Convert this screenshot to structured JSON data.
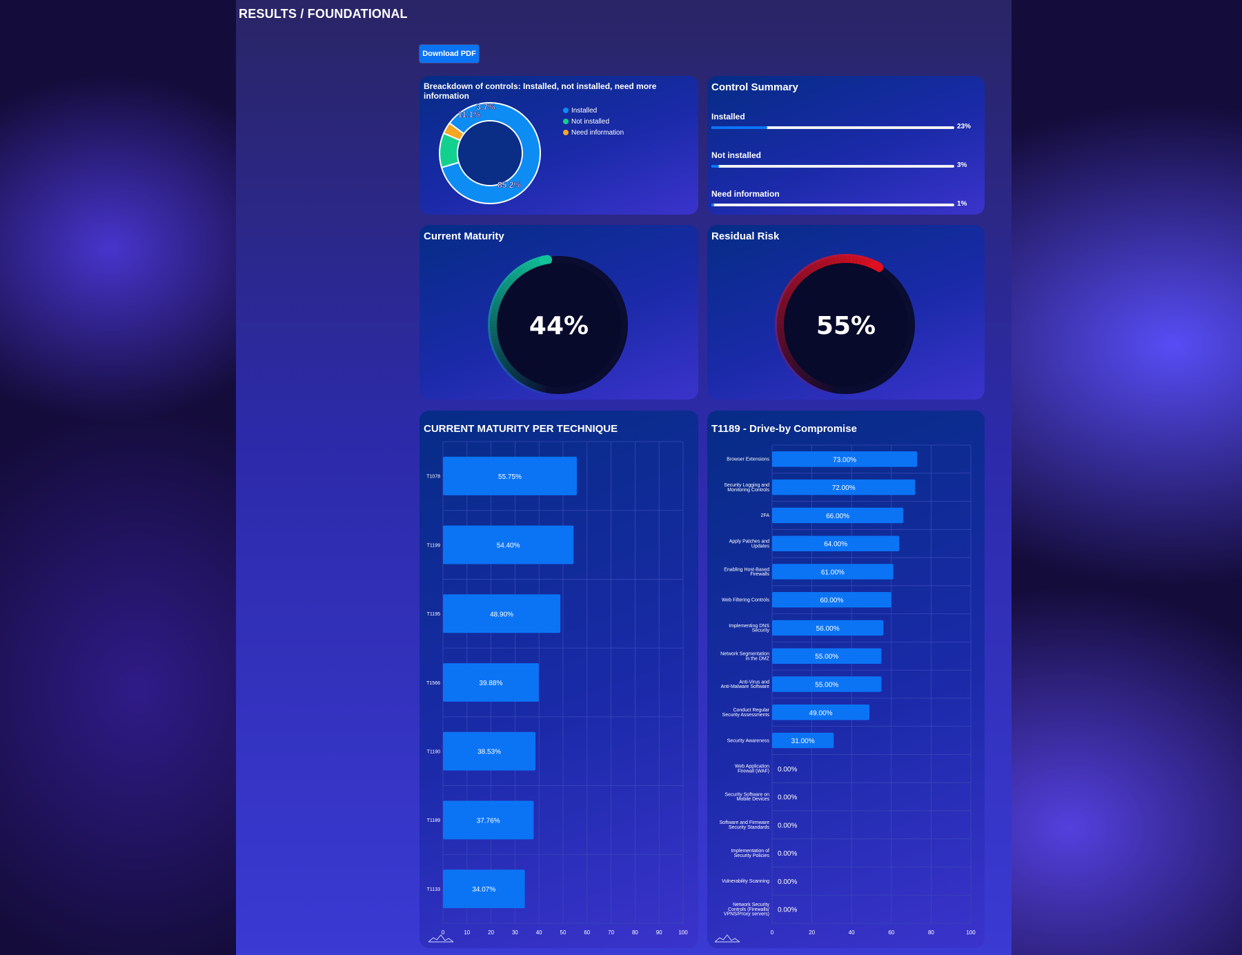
{
  "page": {
    "title": "RESULTS / FOUNDATIONAL",
    "download_label": "Download PDF"
  },
  "breakdown": {
    "title": "Breackdown of controls: Installed, not installed, need more information",
    "legend": [
      {
        "label": "Installed",
        "color": "#0d8cf4"
      },
      {
        "label": "Not installed",
        "color": "#12d18e"
      },
      {
        "label": "Need information",
        "color": "#f5a623"
      }
    ],
    "slices": [
      85.2,
      11.1,
      3.7
    ],
    "slice_labels": [
      "85.2%",
      "11.1%",
      "3.7%"
    ]
  },
  "control_summary": {
    "title": "Control Summary",
    "items": [
      {
        "label": "Installed",
        "pct_label": "23%",
        "value": 23
      },
      {
        "label": "Not installed",
        "pct_label": "3%",
        "value": 3
      },
      {
        "label": "Need information",
        "pct_label": "1%",
        "value": 1
      }
    ]
  },
  "current_maturity": {
    "title": "Current Maturity",
    "value": 44,
    "label": "44%",
    "color": "#12c49a"
  },
  "residual_risk": {
    "title": "Residual Risk",
    "value": 55,
    "label": "55%",
    "color": "#e01020"
  },
  "chart_data": [
    {
      "type": "bar",
      "orientation": "horizontal",
      "title": "CURRENT MATURITY PER TECHNIQUE",
      "categories": [
        "T1078",
        "T1199",
        "T1195",
        "T1566",
        "T1190",
        "T1189",
        "T1133"
      ],
      "values": [
        55.75,
        54.4,
        48.9,
        39.88,
        38.53,
        37.76,
        34.07
      ],
      "value_labels": [
        "55.75%",
        "54.40%",
        "48.90%",
        "39.88%",
        "38.53%",
        "37.76%",
        "34.07%"
      ],
      "xlim": [
        0,
        100
      ],
      "xticks": [
        "0",
        "10",
        "20",
        "30",
        "40",
        "50",
        "60",
        "70",
        "80",
        "90",
        "100"
      ],
      "grid": true,
      "bar_color": "#0b74f5"
    },
    {
      "type": "bar",
      "orientation": "horizontal",
      "title": "T1189 - Drive-by Compromise",
      "categories": [
        [
          "Browser Extensions"
        ],
        [
          "Security Logging and",
          "Monitoring Controls"
        ],
        [
          "2FA"
        ],
        [
          "Apply Patches and",
          "Updates"
        ],
        [
          "Enabling Host-Based",
          "Firewalls"
        ],
        [
          "Web Filtering Controls"
        ],
        [
          "Implementing DNS",
          "Security"
        ],
        [
          "Network Segmentation",
          "in the DMZ"
        ],
        [
          "Anti-Virus and",
          "Anti-Malware Software"
        ],
        [
          "Conduct Regular",
          "Security Assessments"
        ],
        [
          "Security Awareness"
        ],
        [
          "Web Application",
          "Firewall (WAF)"
        ],
        [
          "Security Software on",
          "Mobile Devices"
        ],
        [
          "Software and Firmware",
          "Security Standards"
        ],
        [
          "Implementation of",
          "Security Policies"
        ],
        [
          "Vulnerability Scanning"
        ],
        [
          "Network Security",
          "Controls (Firewalls/",
          "VPNS/Proxy servers)"
        ]
      ],
      "values": [
        73,
        72,
        66,
        64,
        61,
        60,
        56,
        55,
        55,
        49,
        31,
        0,
        0,
        0,
        0,
        0,
        0
      ],
      "value_labels": [
        "73.00%",
        "72.00%",
        "66.00%",
        "64.00%",
        "61.00%",
        "60.00%",
        "56.00%",
        "55.00%",
        "55.00%",
        "49.00%",
        "31.00%",
        "0.00%",
        "0.00%",
        "0.00%",
        "0.00%",
        "0.00%",
        "0.00%"
      ],
      "xlim": [
        0,
        100
      ],
      "xticks": [
        "0",
        "20",
        "40",
        "60",
        "80",
        "100"
      ],
      "grid": true,
      "bar_color": "#0b74f5"
    }
  ]
}
